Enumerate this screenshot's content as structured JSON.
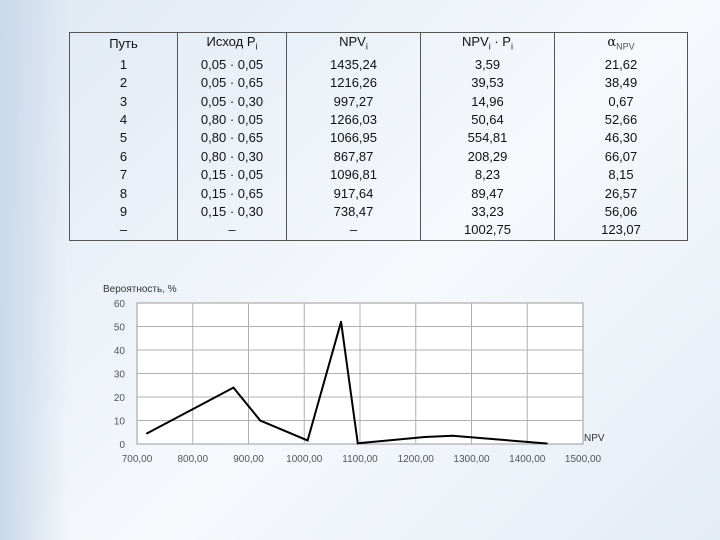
{
  "table": {
    "headers": [
      "Путь",
      "Исход P",
      "NPV",
      "NPV",
      "α"
    ],
    "header_subs": [
      "",
      "i",
      "i",
      "i",
      "NPV"
    ],
    "header_extra": [
      "",
      "",
      "",
      " · P",
      ""
    ],
    "header_extra_sub": [
      "",
      "",
      "",
      "i",
      ""
    ],
    "rows": [
      [
        "1",
        "0,05 · 0,05",
        "1435,24",
        "3,59",
        "21,62"
      ],
      [
        "2",
        "0,05 · 0,65",
        "1216,26",
        "39,53",
        "38,49"
      ],
      [
        "3",
        "0,05 · 0,30",
        "997,27",
        "14,96",
        "0,67"
      ],
      [
        "4",
        "0,80 · 0,05",
        "1266,03",
        "50,64",
        "52,66"
      ],
      [
        "5",
        "0,80 · 0,65",
        "1066,95",
        "554,81",
        "46,30"
      ],
      [
        "6",
        "0,80 · 0,30",
        "867,87",
        "208,29",
        "66,07"
      ],
      [
        "7",
        "0,15 · 0,05",
        "1096,81",
        "8,23",
        "8,15"
      ],
      [
        "8",
        "0,15 · 0,65",
        "917,64",
        "89,47",
        "26,57"
      ],
      [
        "9",
        "0,15 · 0,30",
        "738,47",
        "33,23",
        "56,06"
      ],
      [
        "–",
        "–",
        "–",
        "1002,75",
        "123,07"
      ]
    ]
  },
  "chart_data": {
    "type": "line",
    "ylabel": "Вероятность, %",
    "xlabel": "NPV",
    "xlim": [
      700,
      1500
    ],
    "ylim": [
      0,
      60
    ],
    "x_ticks": [
      700,
      800,
      900,
      1000,
      1100,
      1200,
      1300,
      1400,
      1500
    ],
    "x_tick_labels": [
      "700,00",
      "800,00",
      "900,00",
      "1000,00",
      "1100,00",
      "1200,00",
      "1300,00",
      "1400,00",
      "1500,00"
    ],
    "y_ticks": [
      0,
      10,
      20,
      30,
      40,
      50,
      60
    ],
    "y_tick_labels": [
      "0",
      "10",
      "20",
      "30",
      "40",
      "50",
      "60"
    ],
    "grid": true,
    "series": [
      {
        "x": [
          718,
          873,
          921,
          1006,
          1066,
          1096,
          1216,
          1266,
          1435
        ],
        "y": [
          4.5,
          24,
          10,
          1.5,
          52,
          0.3,
          3,
          3.5,
          0.2
        ]
      }
    ],
    "colors": {
      "line": "#000000",
      "grid": "#b0b0b0",
      "tick_label": "#555555",
      "axis_label": "#333333"
    }
  }
}
